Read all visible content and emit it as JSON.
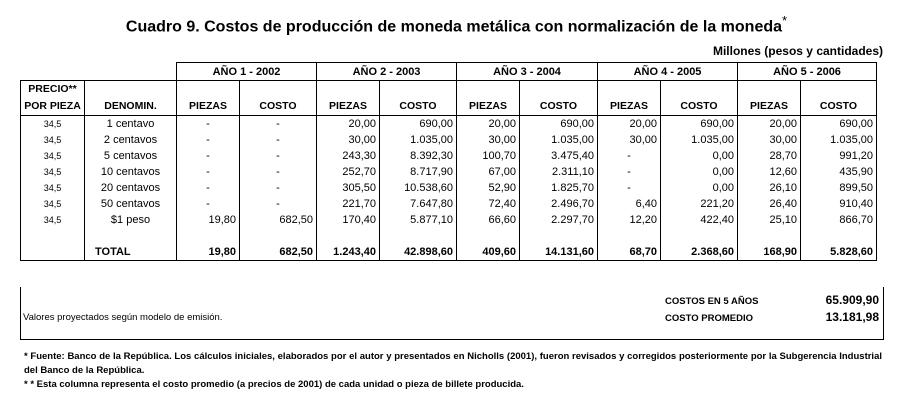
{
  "title": "Cuadro 9. Costos de producción de moneda metálica con normalización de la moneda",
  "title_note_mark": "*",
  "units": "Millones (pesos y cantidades)",
  "table": {
    "price_header": [
      "PRECIO**",
      "POR PIEZA"
    ],
    "denom_header": "DENOMIN.",
    "years": [
      "AÑO 1 - 2002",
      "AÑO 2 - 2003",
      "AÑO 3 - 2004",
      "AÑO 4 - 2005",
      "AÑO 5 - 2006"
    ],
    "sub_headers": [
      "PIEZAS",
      "COSTO"
    ],
    "rows": [
      [
        "34,5",
        "1 centavo",
        "-",
        "-",
        "20,00",
        "690,00",
        "20,00",
        "690,00",
        "20,00",
        "690,00",
        "20,00",
        "690,00"
      ],
      [
        "34,5",
        "2 centavos",
        "-",
        "-",
        "30,00",
        "1.035,00",
        "30,00",
        "1.035,00",
        "30,00",
        "1.035,00",
        "30,00",
        "1.035,00"
      ],
      [
        "34,5",
        "5 centavos",
        "-",
        "-",
        "243,30",
        "8.392,30",
        "100,70",
        "3.475,40",
        "-",
        "0,00",
        "28,70",
        "991,20"
      ],
      [
        "34,5",
        "10 centavos",
        "-",
        "-",
        "252,70",
        "8.717,90",
        "67,00",
        "2.311,10",
        "-",
        "0,00",
        "12,60",
        "435,90"
      ],
      [
        "34,5",
        "20 centavos",
        "-",
        "-",
        "305,50",
        "10.538,60",
        "52,90",
        "1.825,70",
        "-",
        "0,00",
        "26,10",
        "899,50"
      ],
      [
        "34,5",
        "50 centavos",
        "-",
        "-",
        "221,70",
        "7.647,80",
        "72,40",
        "2.496,70",
        "6,40",
        "221,20",
        "26,40",
        "910,40"
      ],
      [
        "34,5",
        "$1 peso",
        "19,80",
        "682,50",
        "170,40",
        "5.877,10",
        "66,60",
        "2.297,70",
        "12,20",
        "422,40",
        "25,10",
        "866,70"
      ]
    ],
    "total": {
      "label": "TOTAL",
      "values": [
        "19,80",
        "682,50",
        "1.243,40",
        "42.898,60",
        "409,60",
        "14.131,60",
        "68,70",
        "2.368,60",
        "168,90",
        "5.828,60"
      ]
    }
  },
  "summary": {
    "note": "Valores proyectados según modelo de emisión.",
    "items": [
      {
        "label": "COSTOS EN 5 AÑOS",
        "value": "65.909,90"
      },
      {
        "label": "COSTO PROMEDIO",
        "value": "13.181,98"
      }
    ]
  },
  "footnotes": [
    "* Fuente: Banco de la República. Los cálculos iniciales, elaborados por el autor y presentados en Nicholls (2001), fueron revisados y corregidos posteriormente por la Subgerencia Industrial del Banco de la República.",
    "* * Esta columna representa el costo promedio (a precios de 2001) de cada unidad o pieza de billete producida."
  ]
}
